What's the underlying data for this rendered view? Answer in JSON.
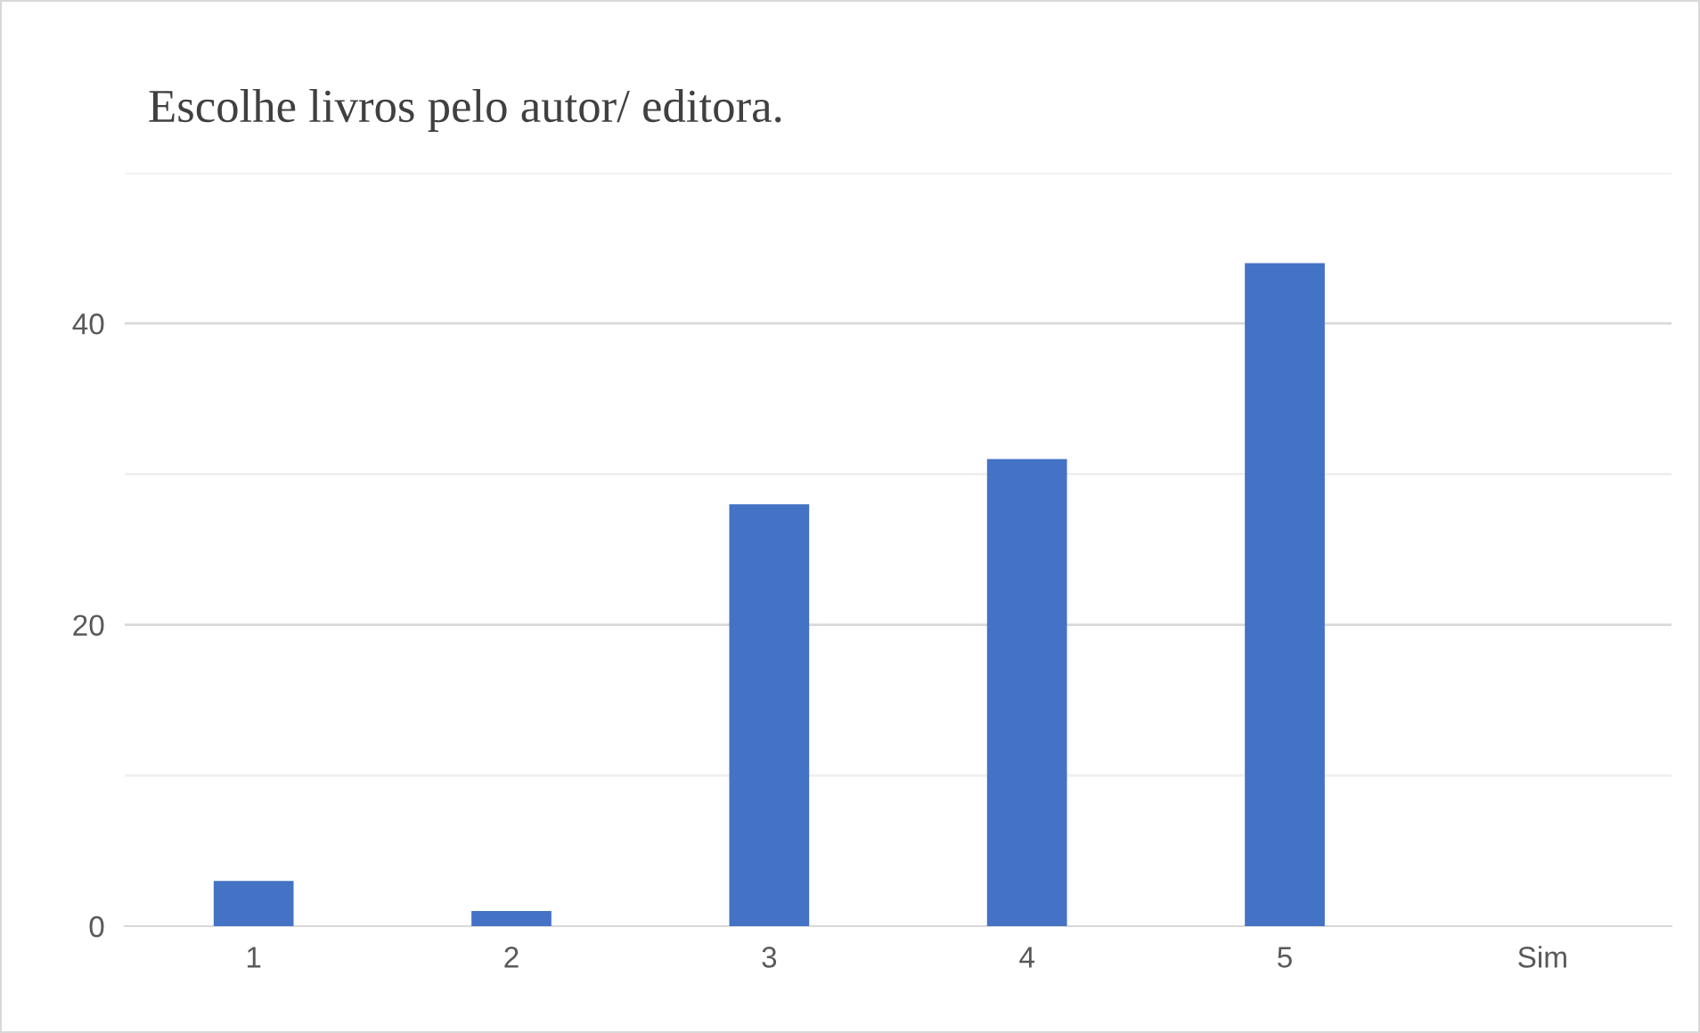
{
  "chart_data": {
    "type": "bar",
    "title": "Escolhe livros pelo autor/ editora.",
    "categories": [
      "1",
      "2",
      "3",
      "4",
      "5",
      "Sim"
    ],
    "values": [
      3,
      1,
      28,
      31,
      44,
      0
    ],
    "color": "#4472c4",
    "ylim": [
      0,
      50
    ],
    "yticks": [
      0,
      {
        "value": 10,
        "label": null
      },
      20,
      {
        "value": 30,
        "label": null
      },
      40,
      {
        "value": 50,
        "label": null
      }
    ],
    "grid": "y",
    "legend": false
  }
}
